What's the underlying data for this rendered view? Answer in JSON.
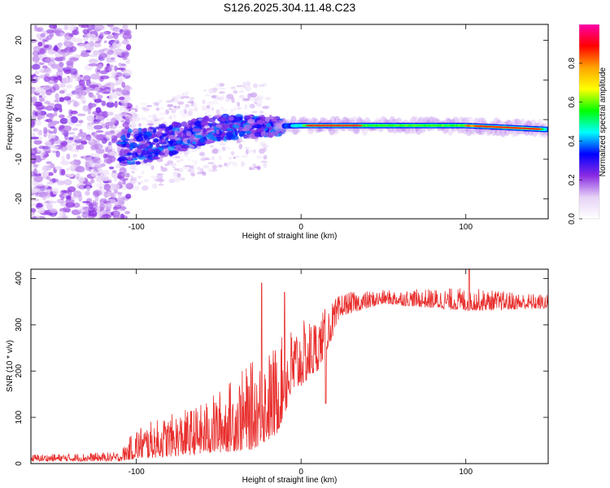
{
  "title": "S126.2025.304.11.48.C23",
  "chart_data": [
    {
      "type": "heatmap",
      "xlabel": "Height of straight line (km)",
      "ylabel": "Frequency (Hz)",
      "xlim": [
        -164,
        150
      ],
      "ylim": [
        -25,
        24
      ],
      "xticks": [
        -100,
        0,
        100
      ],
      "yticks": [
        -20,
        -10,
        0,
        10,
        20
      ],
      "colorbar": {
        "label": "Normalized spectral amplitude",
        "range": [
          0,
          1
        ],
        "ticks": [
          "0.0",
          "0.2",
          "0.4",
          "0.6",
          "0.8"
        ],
        "tick_values": [
          0.0,
          0.2,
          0.4,
          0.6,
          0.8
        ],
        "colors": [
          "#ffffff",
          "#e6d2f6",
          "#8a2be2",
          "#0000ff",
          "#00ffff",
          "#00ff00",
          "#ffff00",
          "#ffa500",
          "#ff0000",
          "#ff00aa"
        ]
      },
      "signal_trend": [
        {
          "x": -100,
          "freq": -7
        },
        {
          "x": -50,
          "freq": -2
        },
        {
          "x": 0,
          "freq": -1.5
        },
        {
          "x": 50,
          "freq": -1.5
        },
        {
          "x": 100,
          "freq": -1.5
        },
        {
          "x": 150,
          "freq": -2.5
        }
      ]
    },
    {
      "type": "line",
      "xlabel": "Height of straight line (km)",
      "ylabel": "SNR (10 * v/v)",
      "xlim": [
        -164,
        150
      ],
      "ylim": [
        0,
        420
      ],
      "xticks": [
        -100,
        0,
        100
      ],
      "yticks": [
        0,
        100,
        200,
        300,
        400
      ],
      "color": "#e8302e",
      "envelope": [
        {
          "x": -164,
          "low": 5,
          "high": 20
        },
        {
          "x": -110,
          "low": 5,
          "high": 25
        },
        {
          "x": -100,
          "low": 10,
          "high": 80
        },
        {
          "x": -60,
          "low": 20,
          "high": 130
        },
        {
          "x": -30,
          "low": 30,
          "high": 220
        },
        {
          "x": -15,
          "low": 60,
          "high": 260
        },
        {
          "x": -5,
          "low": 150,
          "high": 300
        },
        {
          "x": 10,
          "low": 200,
          "high": 320
        },
        {
          "x": 25,
          "low": 320,
          "high": 370
        },
        {
          "x": 50,
          "low": 345,
          "high": 375
        },
        {
          "x": 100,
          "low": 330,
          "high": 380
        },
        {
          "x": 150,
          "low": 335,
          "high": 365
        }
      ],
      "spikes": [
        {
          "x": -24,
          "y": 390
        },
        {
          "x": -10,
          "y": 370
        },
        {
          "x": 15,
          "y": 130
        },
        {
          "x": 102,
          "y": 420
        }
      ]
    }
  ]
}
